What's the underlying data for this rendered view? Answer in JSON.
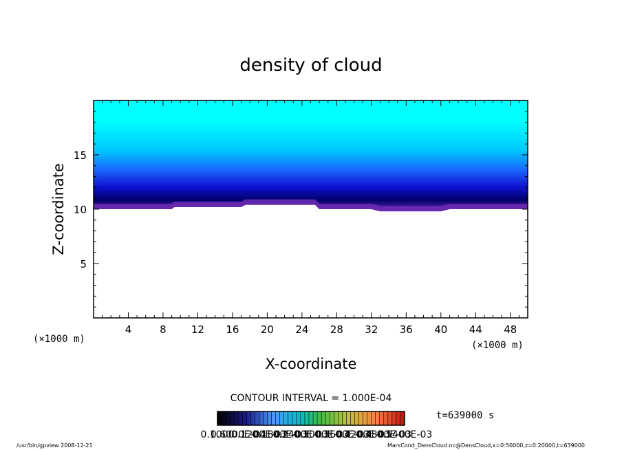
{
  "chart_data": {
    "type": "heatmap",
    "title": "density of cloud",
    "xlabel": "X-coordinate",
    "ylabel": "Z-coordinate",
    "x_unit": "(×1000 m)",
    "xlim": [
      0,
      50
    ],
    "ylim": [
      0,
      20
    ],
    "x_ticks": [
      4,
      8,
      12,
      16,
      20,
      24,
      28,
      32,
      36,
      40,
      44,
      48
    ],
    "y_ticks": [
      5,
      10,
      15
    ],
    "contour_interval": "CONTOUR INTERVAL = 1.000E-04",
    "time": "t=639000 s",
    "colorbar_labels": [
      "0.1000",
      "0.6000E-04",
      "0.1200E-03",
      "0.1800E-03",
      "0.2400E-03",
      "0.3000E-03",
      "0.3600E-03",
      "0.4200E-03",
      "0.4800E-03",
      "0.5400E-03"
    ],
    "cloud_base_km": [
      [
        0,
        10.0
      ],
      [
        9,
        10.0
      ],
      [
        9.3,
        10.2
      ],
      [
        17,
        10.2
      ],
      [
        17.5,
        10.4
      ],
      [
        25.5,
        10.4
      ],
      [
        26,
        10.0
      ],
      [
        32,
        10.0
      ],
      [
        33,
        9.8
      ],
      [
        36,
        9.8
      ],
      [
        40,
        9.8
      ],
      [
        41,
        10.0
      ],
      [
        50,
        10.0
      ]
    ],
    "cloud_top_km": 20,
    "colors": {
      "top": "#00ffff",
      "upper": "#00c8ff",
      "middle": "#1a4bff",
      "dense": "#0000a0",
      "base": "#5a2aa8"
    }
  },
  "footer": {
    "left": "/usr/bin/gpview   2008-12-21",
    "right": "MarsCond_DensCloud.nc@DensCloud,x=0:50000,z=0:20000,t=639000"
  }
}
